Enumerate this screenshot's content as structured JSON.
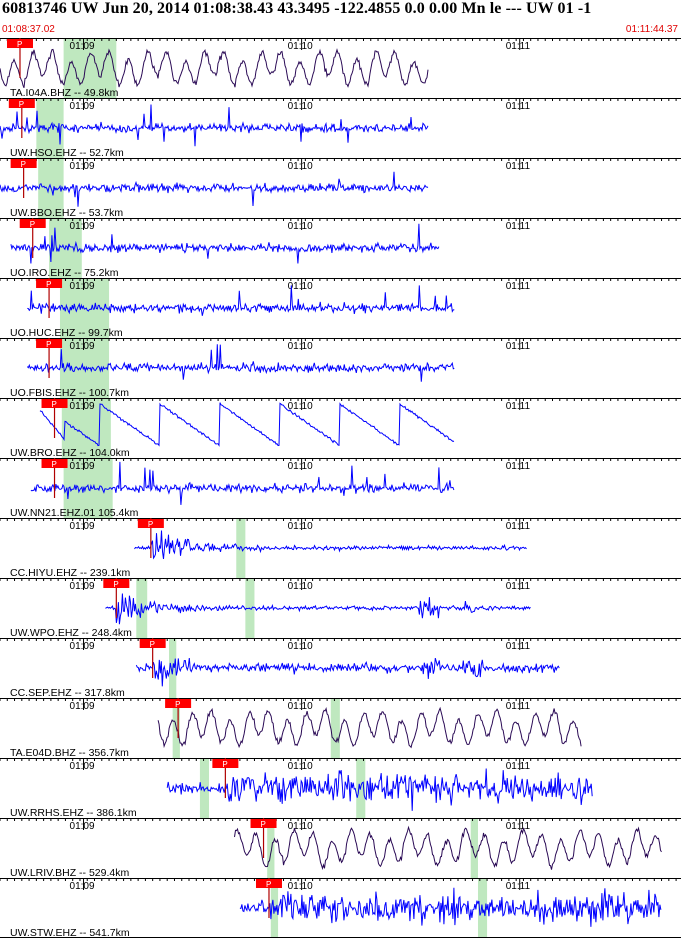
{
  "header": {
    "title": "60813746 UW Jun 20, 2014 01:08:38.43   43.3495 -122.4855  0.0 0.00 Mn le --- UW 01   -1",
    "start_time": "01:08:37.02",
    "end_time": "01:11:44.37"
  },
  "colors": {
    "short_period": "#0000ff",
    "broadband": "#2a0a55",
    "pick_flag": "#ff0000",
    "green_band": "#bfe8bf",
    "time_marker": "#000000"
  },
  "chart_data": {
    "type": "line",
    "title": "60813746 UW Jun 20, 2014 01:08:38.43   43.3495 -122.4855  0.0 0.00 Mn le --- UW 01   -1",
    "x_unit": "seconds after 01:08:37.02",
    "xlim": [
      0,
      187.35
    ],
    "time_labels": [
      {
        "label": "01:09",
        "t": 22.98
      },
      {
        "label": "01:10",
        "t": 82.98
      },
      {
        "label": "01:11",
        "t": 142.98
      }
    ],
    "pick_label": "P",
    "traces": [
      {
        "label": "TA.I04A.BHZ -- 49.8km",
        "kind": "broadband",
        "start": 0.0,
        "end": 118.0,
        "pick": 5.5,
        "green": [
          17.5,
          32.0
        ]
      },
      {
        "label": "UW.HSO.EHZ -- 52.7km",
        "kind": "sp",
        "start": 0.0,
        "end": 118.0,
        "pick": 6.0,
        "green": [
          10.0,
          17.5
        ]
      },
      {
        "label": "UW.BBO.EHZ -- 53.7km",
        "kind": "sp",
        "start": 0.0,
        "end": 118.0,
        "pick": 6.5,
        "green": [
          10.5,
          17.5
        ]
      },
      {
        "label": "UO.IRO.EHZ -- 75.2km",
        "kind": "sp",
        "start": 3.0,
        "end": 121.0,
        "pick": 9.0,
        "green": [
          13.5,
          22.5
        ]
      },
      {
        "label": "UO.HUC.EHZ -- 99.7km",
        "kind": "sp",
        "start": 7.5,
        "end": 125.0,
        "pick": 13.5,
        "green": [
          16.5,
          30.0
        ]
      },
      {
        "label": "UO.FBIS.EHZ -- 100.7km",
        "kind": "sp",
        "start": 7.5,
        "end": 125.0,
        "pick": 13.5,
        "green": [
          16.5,
          30.0
        ]
      },
      {
        "label": "UW.BRO.EHZ -- 104.0km",
        "kind": "decay",
        "start": 11.0,
        "end": 125.0,
        "pick": 15.0,
        "green": [
          17.0,
          30.5
        ]
      },
      {
        "label": "UW.NN21.EHZ.01 105.4km",
        "kind": "sp",
        "start": 8.5,
        "end": 125.0,
        "pick": 15.0,
        "green": [
          17.5,
          31.0
        ]
      },
      {
        "label": "CC.HIYU.EHZ -- 239.1km",
        "kind": "local",
        "start": 37.0,
        "end": 145.0,
        "pick": 41.5,
        "green": [
          65.0,
          67.5
        ]
      },
      {
        "label": "UW.WPO.EHZ -- 248.4km",
        "kind": "local2",
        "start": 29.0,
        "end": 146.0,
        "pick": 32.0,
        "green": [
          37.5,
          40.5,
          67.5,
          70.0
        ]
      },
      {
        "label": "CC.SEP.EHZ -- 317.8km",
        "kind": "local3",
        "start": 37.5,
        "end": 154.0,
        "pick": 42.0,
        "green": [
          46.5,
          48.5
        ]
      },
      {
        "label": "TA.E04D.BHZ -- 356.7km",
        "kind": "broadband",
        "start": 43.5,
        "end": 160.0,
        "pick": 49.0,
        "green": [
          47.5,
          49.5,
          91.0,
          93.5
        ]
      },
      {
        "label": "UW.RRHS.EHZ -- 386.1km",
        "kind": "strong",
        "start": 46.0,
        "end": 163.0,
        "pick": 62.0,
        "green": [
          55.0,
          57.5,
          98.0,
          100.5
        ]
      },
      {
        "label": "UW.LRIV.BHZ -- 529.4km",
        "kind": "broadband",
        "start": 64.5,
        "end": 182.0,
        "pick": 72.5,
        "green": [
          73.5,
          75.5,
          129.5,
          131.5
        ]
      },
      {
        "label": "UW.STW.EHZ -- 541.7km",
        "kind": "strong",
        "start": 66.0,
        "end": 182.0,
        "pick": 74.0,
        "green": [
          74.5,
          76.5,
          131.5,
          134.0
        ]
      }
    ]
  }
}
